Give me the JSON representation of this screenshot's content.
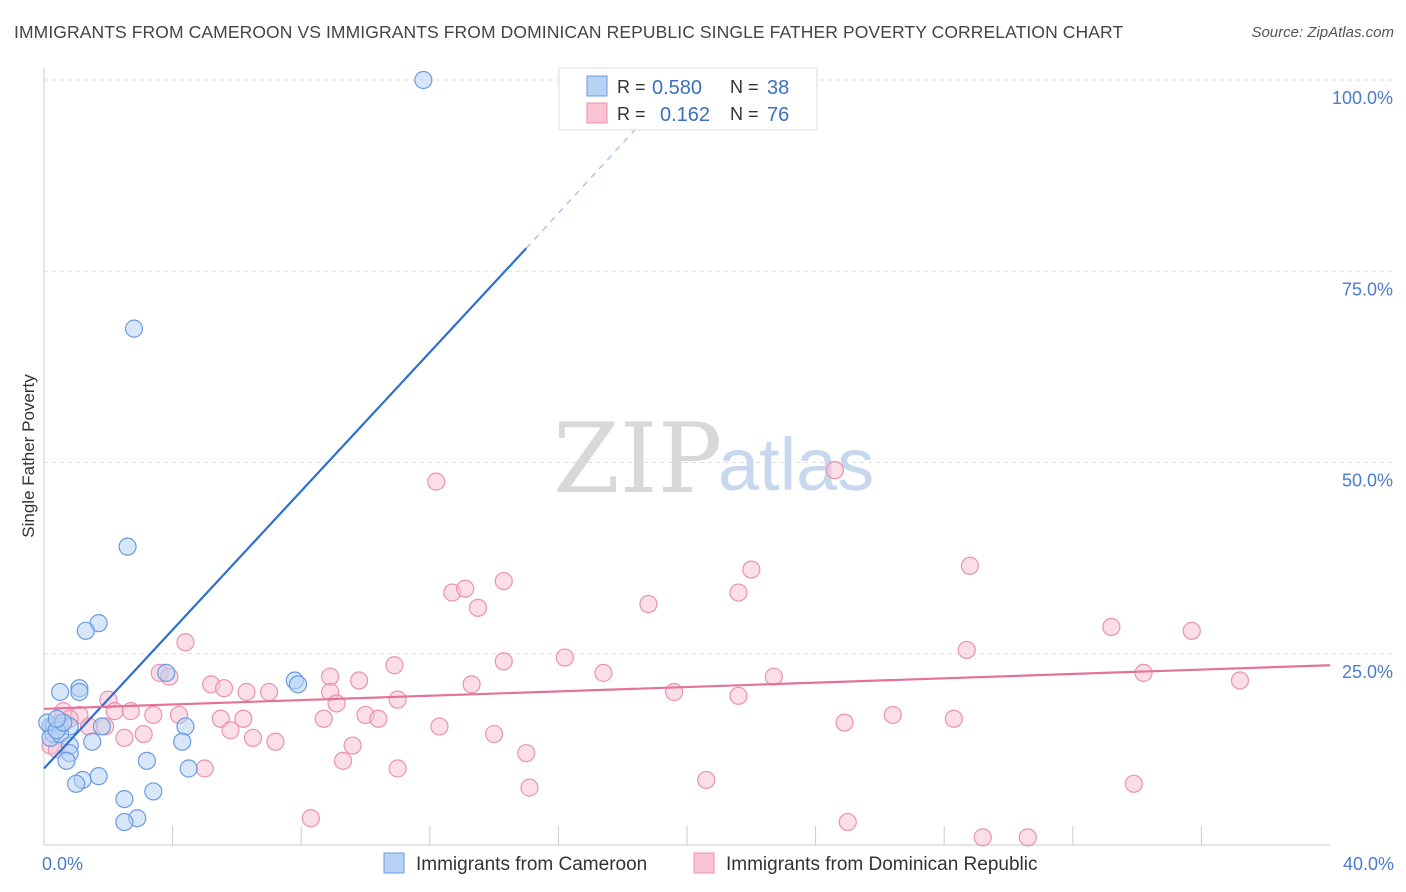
{
  "title": "IMMIGRANTS FROM CAMEROON VS IMMIGRANTS FROM DOMINICAN REPUBLIC SINGLE FATHER POVERTY CORRELATION CHART",
  "source": "Source: ZipAtlas.com",
  "watermark": {
    "zip": "ZIP",
    "atlas": "atlas"
  },
  "colors": {
    "blue_fill": "#b8d2f4",
    "blue_stroke": "#6b9be0",
    "blue_line": "#2f6fd0",
    "pink_fill": "#f9c3d3",
    "pink_stroke": "#ea93ae",
    "pink_line": "#e4739a",
    "grid": "#dddddd",
    "tick_text": "#4a7cc9"
  },
  "legend": {
    "rows": [
      {
        "r_label": "R =",
        "r_value": "0.580",
        "n_label": "N =",
        "n_value": "38"
      },
      {
        "r_label": "R =",
        "r_value": "0.162",
        "n_label": "N =",
        "n_value": "76"
      }
    ]
  },
  "chart_data": {
    "type": "scatter",
    "xlabel": "",
    "ylabel": "Single Father Poverty",
    "xlim": [
      0,
      40
    ],
    "ylim": [
      0,
      100
    ],
    "x_ticks": [
      "0.0%",
      "40.0%"
    ],
    "y_ticks": [
      "25.0%",
      "50.0%",
      "75.0%",
      "100.0%"
    ],
    "grid": true,
    "legend_position": "top-center",
    "series": [
      {
        "name": "Immigrants from Cameroon",
        "color": "#6b9be0",
        "r": 0.58,
        "n": 38,
        "trend": {
          "x": [
            0,
            15
          ],
          "y": [
            10.0,
            78.0
          ],
          "dashed_to": {
            "x": 18.6,
            "y": 94.5
          }
        },
        "points": [
          [
            11.8,
            100.0
          ],
          [
            2.8,
            67.5
          ],
          [
            2.6,
            39.0
          ],
          [
            1.7,
            29.0
          ],
          [
            1.3,
            28.0
          ],
          [
            0.5,
            20.0
          ],
          [
            1.1,
            20.5
          ],
          [
            1.1,
            20.0
          ],
          [
            3.8,
            22.5
          ],
          [
            7.8,
            21.5
          ],
          [
            0.2,
            15.5
          ],
          [
            0.3,
            15.5
          ],
          [
            0.5,
            15.5
          ],
          [
            0.8,
            15.5
          ],
          [
            1.8,
            15.5
          ],
          [
            0.3,
            14.5
          ],
          [
            0.2,
            14.0
          ],
          [
            0.5,
            14.5
          ],
          [
            4.4,
            15.5
          ],
          [
            1.5,
            13.5
          ],
          [
            0.8,
            13.0
          ],
          [
            4.3,
            13.5
          ],
          [
            0.8,
            12.0
          ],
          [
            0.7,
            11.0
          ],
          [
            3.2,
            11.0
          ],
          [
            4.5,
            10.0
          ],
          [
            1.7,
            9.0
          ],
          [
            1.2,
            8.5
          ],
          [
            1.0,
            8.0
          ],
          [
            3.4,
            7.0
          ],
          [
            2.5,
            6.0
          ],
          [
            2.9,
            3.5
          ],
          [
            2.5,
            3.0
          ],
          [
            0.1,
            16.0
          ],
          [
            0.4,
            15.0
          ],
          [
            7.9,
            21.0
          ],
          [
            0.6,
            16.0
          ],
          [
            0.4,
            16.5
          ]
        ]
      },
      {
        "name": "Immigrants from Dominican Republic",
        "color": "#ea93ae",
        "r": 0.162,
        "n": 76,
        "trend": {
          "x": [
            0,
            40
          ],
          "y": [
            17.8,
            23.5
          ]
        },
        "points": [
          [
            12.2,
            47.5
          ],
          [
            24.6,
            49.0
          ],
          [
            22.0,
            36.0
          ],
          [
            28.8,
            36.5
          ],
          [
            14.3,
            34.5
          ],
          [
            12.7,
            33.0
          ],
          [
            13.1,
            33.5
          ],
          [
            18.8,
            31.5
          ],
          [
            21.6,
            33.0
          ],
          [
            13.5,
            31.0
          ],
          [
            33.2,
            28.5
          ],
          [
            35.7,
            28.0
          ],
          [
            4.4,
            26.5
          ],
          [
            28.7,
            25.5
          ],
          [
            16.2,
            24.5
          ],
          [
            14.3,
            24.0
          ],
          [
            10.9,
            23.5
          ],
          [
            3.6,
            22.5
          ],
          [
            17.4,
            22.5
          ],
          [
            8.9,
            22.0
          ],
          [
            3.9,
            22.0
          ],
          [
            22.7,
            22.0
          ],
          [
            34.2,
            22.5
          ],
          [
            37.2,
            21.5
          ],
          [
            9.8,
            21.5
          ],
          [
            13.3,
            21.0
          ],
          [
            5.2,
            21.0
          ],
          [
            5.6,
            20.5
          ],
          [
            6.3,
            20.0
          ],
          [
            7.0,
            20.0
          ],
          [
            8.9,
            20.0
          ],
          [
            19.6,
            20.0
          ],
          [
            21.6,
            19.5
          ],
          [
            2.0,
            19.0
          ],
          [
            11.0,
            19.0
          ],
          [
            9.1,
            18.5
          ],
          [
            0.6,
            17.5
          ],
          [
            2.2,
            17.5
          ],
          [
            2.7,
            17.5
          ],
          [
            1.1,
            17.0
          ],
          [
            10.0,
            17.0
          ],
          [
            6.2,
            16.5
          ],
          [
            3.4,
            17.0
          ],
          [
            4.2,
            17.0
          ],
          [
            5.5,
            16.5
          ],
          [
            8.7,
            16.5
          ],
          [
            10.4,
            16.5
          ],
          [
            26.4,
            17.0
          ],
          [
            24.9,
            16.0
          ],
          [
            28.3,
            16.5
          ],
          [
            1.4,
            15.5
          ],
          [
            1.9,
            15.5
          ],
          [
            5.8,
            15.0
          ],
          [
            12.3,
            15.5
          ],
          [
            14.0,
            14.5
          ],
          [
            3.1,
            14.5
          ],
          [
            2.5,
            14.0
          ],
          [
            6.5,
            14.0
          ],
          [
            7.2,
            13.5
          ],
          [
            9.6,
            13.0
          ],
          [
            0.2,
            13.0
          ],
          [
            0.4,
            12.5
          ],
          [
            15.0,
            12.0
          ],
          [
            9.3,
            11.0
          ],
          [
            11.0,
            10.0
          ],
          [
            5.0,
            10.0
          ],
          [
            20.6,
            8.5
          ],
          [
            15.1,
            7.5
          ],
          [
            33.9,
            8.0
          ],
          [
            8.3,
            3.5
          ],
          [
            25.0,
            3.0
          ],
          [
            29.2,
            1.0
          ],
          [
            30.6,
            1.0
          ],
          [
            0.3,
            15.5
          ],
          [
            0.5,
            16.0
          ],
          [
            0.8,
            16.5
          ]
        ]
      }
    ]
  }
}
